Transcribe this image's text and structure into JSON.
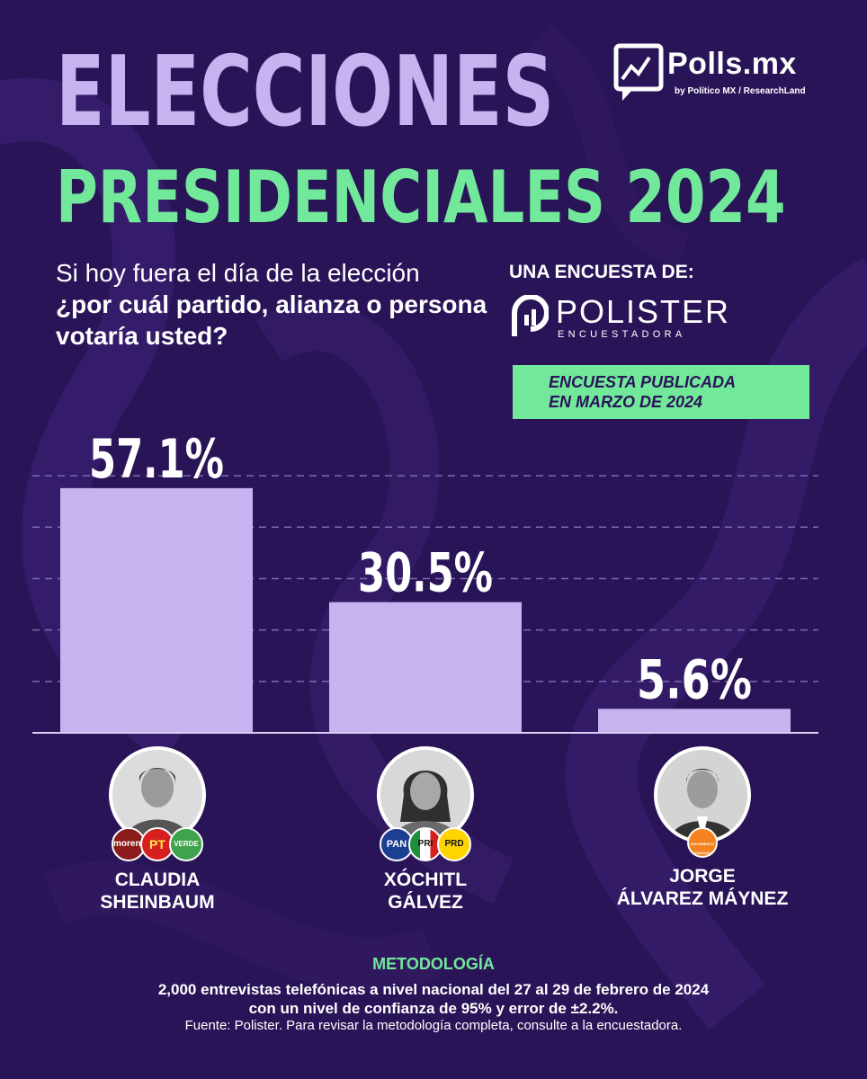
{
  "header": {
    "title_line1": "ELECCIONES",
    "title_line2": "PRESIDENCIALES 2024"
  },
  "brand": {
    "name": "Polls.mx",
    "sub": "by Político MX / ResearchLand"
  },
  "question": {
    "line1": "Si hoy fuera el día de la elección",
    "line2": "¿por cuál partido, alianza o persona votaría usted?"
  },
  "pollster": {
    "label": "UNA ENCUESTA DE:",
    "name": "POLISTER",
    "sub": "ENCUESTADORA"
  },
  "publication": {
    "line1": "ENCUESTA PUBLICADA",
    "line2": "EN MARZO DE 2024"
  },
  "chart_data": {
    "type": "bar",
    "categories": [
      "CLAUDIA SHEINBAUM",
      "XÓCHITL GÁLVEZ",
      "JORGE ÁLVAREZ MÁYNEZ"
    ],
    "values": [
      57.1,
      30.5,
      5.6
    ],
    "data_labels": [
      "57.1%",
      "30.5%",
      "5.6%"
    ],
    "unit": "%",
    "ylim": [
      0,
      64
    ],
    "grid": true,
    "colors": {
      "bar": "#c6b3ef",
      "grid": "#7e69b0",
      "baseline": "#d9cff5"
    }
  },
  "candidates": [
    {
      "name_line1": "CLAUDIA",
      "name_line2": "SHEINBAUM",
      "parties": [
        "morena",
        "PT",
        "VERDE"
      ]
    },
    {
      "name_line1": "XÓCHITL",
      "name_line2": "GÁLVEZ",
      "parties": [
        "PAN",
        "PRI",
        "PRD"
      ]
    },
    {
      "name_line1": "JORGE",
      "name_line2": "ÁLVAREZ MÁYNEZ",
      "parties": [
        "MOVIMIENTO CIUDADANO"
      ]
    }
  ],
  "methodology": {
    "title": "METODOLOGÍA",
    "line1": "2,000 entrevistas telefónicas a nivel nacional del 27 al 29 de febrero de 2024",
    "line2": "con un nivel de confianza de 95% y error de ±2.2%.",
    "source": "Fuente: Polister. Para revisar la metodología completa, consulte a la encuestadora."
  },
  "colors": {
    "background": "#2a1458",
    "title_purple": "#c6b3ef",
    "accent_green": "#72e89a",
    "text": "#ffffff"
  }
}
